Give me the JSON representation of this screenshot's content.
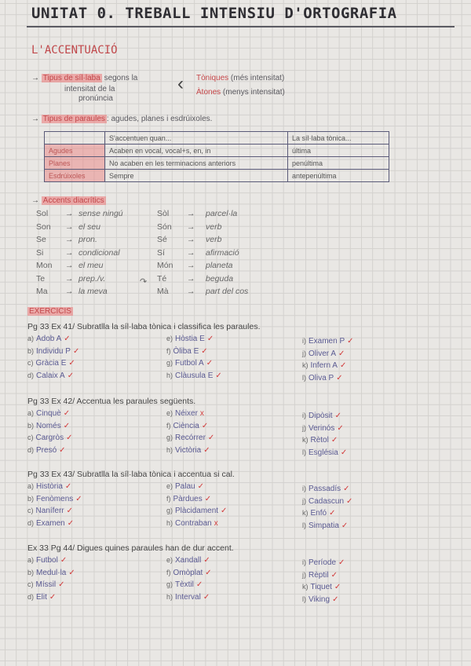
{
  "title": "UNITAT 0. TREBALL INTENSIU D'ORTOGRAFIA",
  "section": "L'ACCENTUACIÓ",
  "syllables": {
    "label": "Tipus de síl·laba",
    "rest": "segons la",
    "rest2": "intensitat de la",
    "rest3": "pronúncia",
    "tonic": "Tòniques",
    "tonic_note": "(més intensitat)",
    "atonic": "Àtones",
    "atonic_note": "(menys intensitat)"
  },
  "words": {
    "label": "Tipus de paraules",
    "rest": ": agudes, planes i esdrúixoles."
  },
  "table": {
    "header": [
      "",
      "S'accentuen quan...",
      "La síl·laba tònica..."
    ],
    "rows": [
      [
        "Agudes",
        "Acaben en vocal, vocal+s, en, in",
        "última"
      ],
      [
        "Planes",
        "No acaben en les terminacions anteriors",
        "penúltima"
      ],
      [
        "Esdrúixoles",
        "Sempre",
        "antepenúltima"
      ]
    ]
  },
  "diacritics": {
    "label": "Accents diacrítics",
    "rows": [
      [
        "Sol",
        "sense ningú",
        "Sòl",
        "parcel·la"
      ],
      [
        "Son",
        "el seu",
        "Són",
        "verb"
      ],
      [
        "Se",
        "pron.",
        "Sé",
        "verb"
      ],
      [
        "Si",
        "condicional",
        "Sí",
        "afirmació"
      ],
      [
        "Mon",
        "el meu",
        "Món",
        "planeta"
      ],
      [
        "Te",
        "prep./v.",
        "Té",
        "beguda"
      ],
      [
        "Ma",
        "la meva",
        "Mà",
        "part del cos"
      ]
    ]
  },
  "exercises_label": "EXERCICIS",
  "exercises": [
    {
      "heading": "Pg 33 Ex 41/ Subratlla la síl·laba tònica i classifica les paraules.",
      "items": [
        [
          "a)",
          "Adob A",
          "✓"
        ],
        [
          "b)",
          "Individu P",
          "✓"
        ],
        [
          "c)",
          "Gràcia E",
          "✓"
        ],
        [
          "d)",
          "Calaix A",
          "✓"
        ],
        [
          "e)",
          "Hòstia E",
          "✓"
        ],
        [
          "f)",
          "Òliba E",
          "✓"
        ],
        [
          "g)",
          "Futbol A",
          "✓"
        ],
        [
          "h)",
          "Clàusula E",
          "✓"
        ],
        [
          "i)",
          "Examen P",
          "✓"
        ],
        [
          "j)",
          "Oliver A",
          "✓"
        ],
        [
          "k)",
          "Infern A",
          "✓"
        ],
        [
          "l)",
          "Oliva P",
          "✓"
        ]
      ]
    },
    {
      "heading": "Pg 33 Ex 42/ Accentua les paraules següents.",
      "items": [
        [
          "a)",
          "Cinquè",
          "✓"
        ],
        [
          "b)",
          "Només",
          "✓"
        ],
        [
          "c)",
          "Cargròs",
          "✓"
        ],
        [
          "d)",
          "Presó",
          "✓"
        ],
        [
          "e)",
          "Néixer",
          "x"
        ],
        [
          "f)",
          "Ciència",
          "✓"
        ],
        [
          "g)",
          "Recórrer",
          "✓"
        ],
        [
          "h)",
          "Victòria",
          "✓"
        ],
        [
          "i)",
          "Dipòsit",
          "✓"
        ],
        [
          "j)",
          "Verinós",
          "✓"
        ],
        [
          "k)",
          "Rètol",
          "✓"
        ],
        [
          "l)",
          "Església",
          "✓"
        ]
      ]
    },
    {
      "heading": "Pg 33 Ex 43/ Subratlla la síl·laba tònica i accentua si cal.",
      "items": [
        [
          "a)",
          "Història",
          "✓"
        ],
        [
          "b)",
          "Fenòmens",
          "✓"
        ],
        [
          "c)",
          "Naníferr",
          "✓"
        ],
        [
          "d)",
          "Examen",
          "✓"
        ],
        [
          "e)",
          "Palau",
          "✓"
        ],
        [
          "f)",
          "Pàrdues",
          "✓"
        ],
        [
          "g)",
          "Plàcidament",
          "✓"
        ],
        [
          "h)",
          "Contraban",
          "x"
        ],
        [
          "i)",
          "Passadís",
          "✓"
        ],
        [
          "j)",
          "Cadascun",
          "✓"
        ],
        [
          "k)",
          "Enfó",
          "✓"
        ],
        [
          "l)",
          "Simpatia",
          "✓"
        ]
      ]
    },
    {
      "heading": "Ex 33 Pg 44/ Digues quines paraules han de dur accent.",
      "items": [
        [
          "a)",
          "Futbol",
          "✓"
        ],
        [
          "b)",
          "Medul·la",
          "✓"
        ],
        [
          "c)",
          "Míssil",
          "✓"
        ],
        [
          "d)",
          "Elit",
          "✓"
        ],
        [
          "e)",
          "Xandall",
          "✓"
        ],
        [
          "f)",
          "Omòplat",
          "✓"
        ],
        [
          "g)",
          "Tèxtil",
          "✓"
        ],
        [
          "h)",
          "Interval",
          "✓"
        ],
        [
          "i)",
          "Període",
          "✓"
        ],
        [
          "j)",
          "Rèptil",
          "✓"
        ],
        [
          "k)",
          "Tiquet",
          "✓"
        ],
        [
          "l)",
          "Viking",
          "✓"
        ]
      ]
    }
  ],
  "colors": {
    "highlight": "#ec7878",
    "ink": "#5b5a60",
    "answer": "#5a5a92",
    "check": "#d23a3a"
  }
}
